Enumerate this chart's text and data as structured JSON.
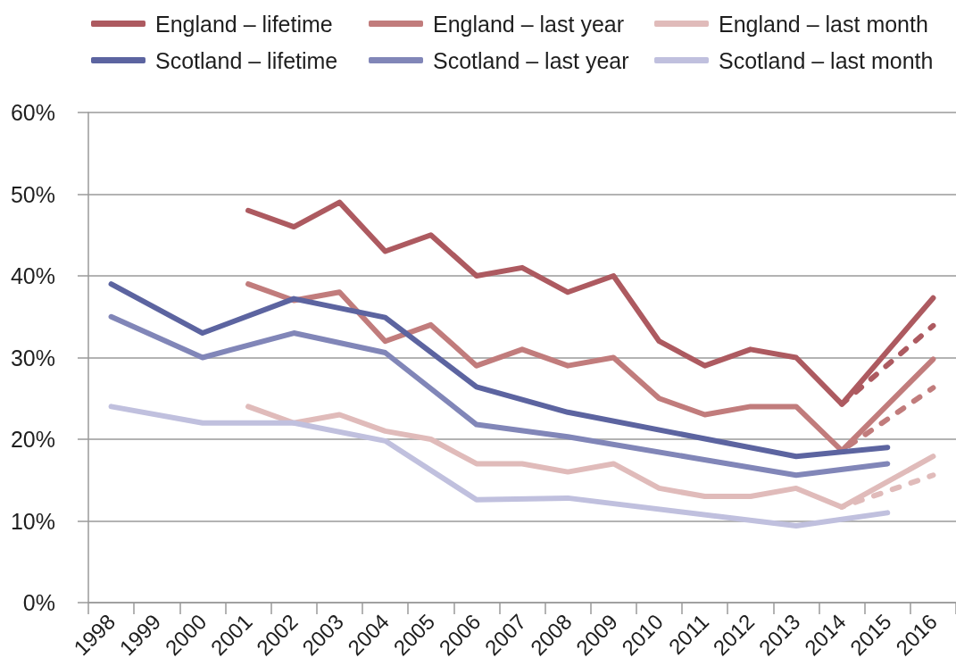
{
  "chart_data": {
    "type": "line",
    "categories": [
      "1998",
      "1999",
      "2000",
      "2001",
      "2002",
      "2003",
      "2004",
      "2005",
      "2006",
      "2007",
      "2008",
      "2009",
      "2010",
      "2011",
      "2012",
      "2013",
      "2014",
      "2015",
      "2016"
    ],
    "ylim": [
      0,
      60
    ],
    "yticks": [
      {
        "value": 0,
        "label": "0%"
      },
      {
        "value": 10,
        "label": "10%"
      },
      {
        "value": 20,
        "label": "20%"
      },
      {
        "value": 30,
        "label": "30%"
      },
      {
        "value": 40,
        "label": "40%"
      },
      {
        "value": 50,
        "label": "50%"
      },
      {
        "value": 60,
        "label": "60%"
      }
    ],
    "grid": "y",
    "legend": "top",
    "marker": "none",
    "series": [
      {
        "name": "England – lifetime",
        "color": "#ad5a60",
        "line_style": "solid",
        "values": [
          null,
          null,
          null,
          48,
          46,
          49,
          43,
          45,
          40,
          41,
          38,
          40,
          32,
          29,
          31,
          30,
          24.3,
          null,
          37.3
        ]
      },
      {
        "name": "England – last year",
        "color": "#c17c7c",
        "line_style": "solid",
        "values": [
          null,
          null,
          null,
          39,
          37,
          38,
          32,
          34,
          29,
          31,
          29,
          30,
          25,
          23,
          24,
          24,
          18.6,
          null,
          29.8
        ]
      },
      {
        "name": "England – last month",
        "color": "#e0bbba",
        "line_style": "solid",
        "values": [
          null,
          null,
          null,
          24,
          22,
          23,
          21,
          20,
          17,
          17,
          16,
          17,
          14,
          13,
          13,
          14,
          11.7,
          null,
          17.9
        ]
      },
      {
        "name": "Scotland – lifetime",
        "color": "#5c64a0",
        "line_style": "solid",
        "values": [
          39,
          null,
          33,
          null,
          37.2,
          null,
          34.9,
          null,
          26.4,
          null,
          23.3,
          null,
          null,
          null,
          null,
          17.9,
          null,
          19,
          null
        ]
      },
      {
        "name": "Scotland – last year",
        "color": "#8186b8",
        "line_style": "solid",
        "values": [
          35,
          null,
          30,
          null,
          33,
          null,
          30.6,
          null,
          21.8,
          null,
          20.3,
          null,
          null,
          null,
          null,
          15.6,
          null,
          17,
          null
        ]
      },
      {
        "name": "Scotland – last month",
        "color": "#c0c0de",
        "line_style": "solid",
        "values": [
          24,
          null,
          22,
          null,
          22,
          null,
          19.8,
          null,
          12.6,
          null,
          12.8,
          null,
          null,
          null,
          null,
          9.4,
          null,
          11,
          null
        ]
      },
      {
        "color": "#ad5a60",
        "line_style": "dashed",
        "values": [
          null,
          null,
          null,
          null,
          null,
          null,
          null,
          null,
          null,
          null,
          null,
          null,
          null,
          null,
          null,
          null,
          24.3,
          null,
          33.9
        ]
      },
      {
        "color": "#c17c7c",
        "line_style": "dashed",
        "values": [
          null,
          null,
          null,
          null,
          null,
          null,
          null,
          null,
          null,
          null,
          null,
          null,
          null,
          null,
          null,
          null,
          18.6,
          null,
          26.3
        ]
      },
      {
        "color": "#e0bbba",
        "line_style": "dashed",
        "values": [
          null,
          null,
          null,
          null,
          null,
          null,
          null,
          null,
          null,
          null,
          null,
          null,
          null,
          null,
          null,
          null,
          11.7,
          null,
          15.6
        ]
      }
    ]
  }
}
